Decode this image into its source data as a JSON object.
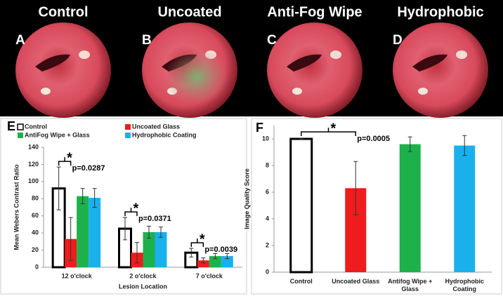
{
  "images": [
    {
      "title": "Control",
      "letter": "A"
    },
    {
      "title": "Uncoated",
      "letter": "B"
    },
    {
      "title": "Anti-Fog Wipe",
      "letter": "C"
    },
    {
      "title": "Hydrophobic",
      "letter": "D"
    }
  ],
  "chart_data": [
    {
      "type": "grouped_bar",
      "panel": "E",
      "xlabel": "Lesion Location",
      "ylabel": "Mean Webers Contrast Ratio",
      "categories": [
        "12 o'clock",
        "2 o'clock",
        "7 o'clock"
      ],
      "series": [
        {
          "name": "Control",
          "color": "#ffffff",
          "edgecolor": "#000000",
          "values": [
            92,
            45,
            17
          ],
          "errors": [
            25,
            13,
            5
          ]
        },
        {
          "name": "Uncoated Glass",
          "color": "#ee1c1c",
          "values": [
            33,
            17,
            8
          ],
          "errors": [
            25,
            12,
            3
          ]
        },
        {
          "name": "AntiFog Wipe + Glass",
          "color": "#1db14b",
          "values": [
            83,
            41,
            13
          ],
          "errors": [
            9,
            7,
            3
          ]
        },
        {
          "name": "Hydrophobic Coating",
          "color": "#1ab0ec",
          "values": [
            81,
            41,
            13
          ],
          "errors": [
            11,
            6,
            3
          ]
        }
      ],
      "annotations": [
        {
          "marker": "*",
          "text": "p=0.0287"
        },
        {
          "marker": "*",
          "text": "p=0.0371"
        },
        {
          "marker": "*",
          "text": "p=0.0039"
        }
      ],
      "ylim": [
        0,
        140
      ],
      "yticks": [
        0,
        20,
        40,
        60,
        80,
        100,
        120,
        140
      ],
      "grid": false
    },
    {
      "type": "bar",
      "panel": "F",
      "ylabel": "Image Quality Score",
      "categories": [
        "Control",
        "Uncoated Glass",
        "Antifog Wipe + Glass",
        "Hydrophobic Coating"
      ],
      "values": [
        10,
        6.3,
        9.6,
        9.5
      ],
      "errors": [
        0,
        2,
        0.55,
        0.75
      ],
      "colors": [
        "#ffffff",
        "#ee1c1c",
        "#1db14b",
        "#1ab0ec"
      ],
      "edgecolors": [
        "#000000",
        null,
        null,
        null
      ],
      "annotation": {
        "marker": "*",
        "text": "p=0.0005"
      },
      "ylim": [
        0,
        11
      ],
      "yticks": [
        0,
        2,
        4,
        6,
        8,
        10
      ],
      "grid": false
    }
  ]
}
